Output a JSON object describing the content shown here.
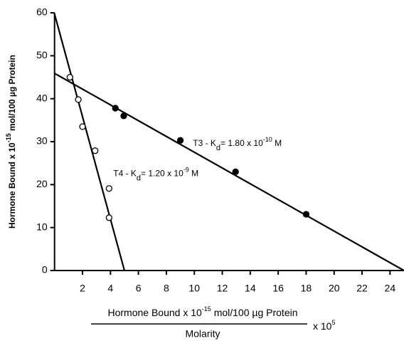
{
  "chart_data": {
    "type": "scatter",
    "xlim": [
      0,
      25
    ],
    "ylim": [
      0,
      60
    ],
    "xticks": [
      2,
      4,
      6,
      8,
      10,
      12,
      14,
      16,
      18,
      20,
      22,
      24
    ],
    "yticks": [
      0,
      10,
      20,
      30,
      40,
      50,
      60
    ],
    "series": [
      {
        "marker": "open",
        "color": "#000000",
        "x": [
          1.1,
          1.7,
          2.0,
          2.9,
          3.9,
          3.9
        ],
        "values": [
          45,
          39.8,
          33.5,
          27.9,
          19.1,
          12.3
        ]
      },
      {
        "marker": "filled",
        "color": "#000000",
        "x": [
          4.35,
          4.95,
          9.0,
          12.95,
          18.0
        ],
        "values": [
          37.8,
          36,
          30.3,
          23,
          13.1
        ]
      }
    ],
    "fit_lines": [
      {
        "color": "#000000",
        "x": [
          0,
          5.0
        ],
        "values": [
          59.7,
          0
        ]
      },
      {
        "color": "#000000",
        "x": [
          0,
          25
        ],
        "values": [
          45.9,
          0
        ]
      }
    ],
    "annotations": [
      {
        "x": 9.9,
        "y": 29.5,
        "parts": [
          "T3 - K",
          "d",
          "= 1.80 x 10",
          "-10",
          " M"
        ]
      },
      {
        "x": 4.2,
        "y": 22.5,
        "parts": [
          "T4 - K",
          "d",
          "= 1.20 x 10",
          "-9",
          " M"
        ]
      }
    ],
    "y_label": [
      "Hormone Bound  x 10",
      "-15",
      " mol/100 µg Protein"
    ],
    "x_label_numerator": [
      "Hormone Bound x 10",
      "-15",
      " mol/100 µg Protein"
    ],
    "x_label_denominator": "Molarity",
    "x_label_factor": [
      "x 10",
      "5"
    ]
  }
}
